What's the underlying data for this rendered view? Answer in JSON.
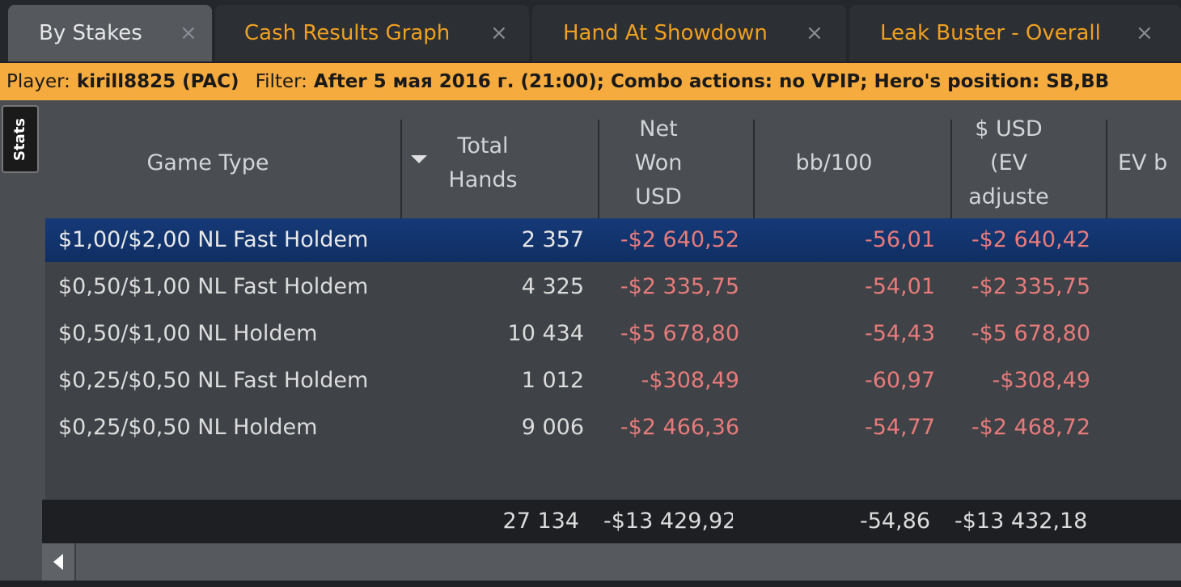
{
  "tabs": [
    {
      "label": "By Stakes",
      "close": "×",
      "active": true
    },
    {
      "label": "Cash Results Graph",
      "close": "×",
      "active": false
    },
    {
      "label": "Hand At Showdown",
      "close": "×",
      "active": false
    },
    {
      "label": "Leak Buster - Overall",
      "close": "×",
      "active": false
    }
  ],
  "filter": {
    "player_label": "Player:",
    "player_value": "kirill8825 (PAC)",
    "filter_label": "Filter:",
    "filter_value": "After 5 мая 2016 г. (21:00); Combo actions: no VPIP; Hero's position: SB,BB"
  },
  "side_tab": {
    "label": "Stats"
  },
  "table": {
    "headers": {
      "game_type": "Game Type",
      "total_hands": "Total Hands",
      "net_won": "Net Won USD",
      "bb100": "bb/100",
      "ev_adjusted": "$ USD (EV adjuste",
      "ev_bb": "EV b"
    },
    "rows": [
      {
        "game": "$1,00/$2,00 NL Fast Holdem",
        "hands": "2 357",
        "net": "-$2 640,52",
        "bb": "-56,01",
        "ev": "-$2 640,42"
      },
      {
        "game": "$0,50/$1,00 NL Fast Holdem",
        "hands": "4 325",
        "net": "-$2 335,75",
        "bb": "-54,01",
        "ev": "-$2 335,75"
      },
      {
        "game": "$0,50/$1,00 NL Holdem",
        "hands": "10 434",
        "net": "-$5 678,80",
        "bb": "-54,43",
        "ev": "-$5 678,80"
      },
      {
        "game": "$0,25/$0,50 NL Fast Holdem",
        "hands": "1 012",
        "net": "-$308,49",
        "bb": "-60,97",
        "ev": "-$308,49"
      },
      {
        "game": "$0,25/$0,50 NL Holdem",
        "hands": "9 006",
        "net": "-$2 466,36",
        "bb": "-54,77",
        "ev": "-$2 468,72"
      }
    ],
    "totals": {
      "hands": "27 134",
      "net": "-$13 429,92",
      "bb": "-54,86",
      "ev": "-$13 432,18"
    }
  },
  "colors": {
    "accent": "#f0a020",
    "negative": "#e77b7b",
    "selected_row": "#163a78",
    "filter_bar": "#f6ab3f"
  }
}
